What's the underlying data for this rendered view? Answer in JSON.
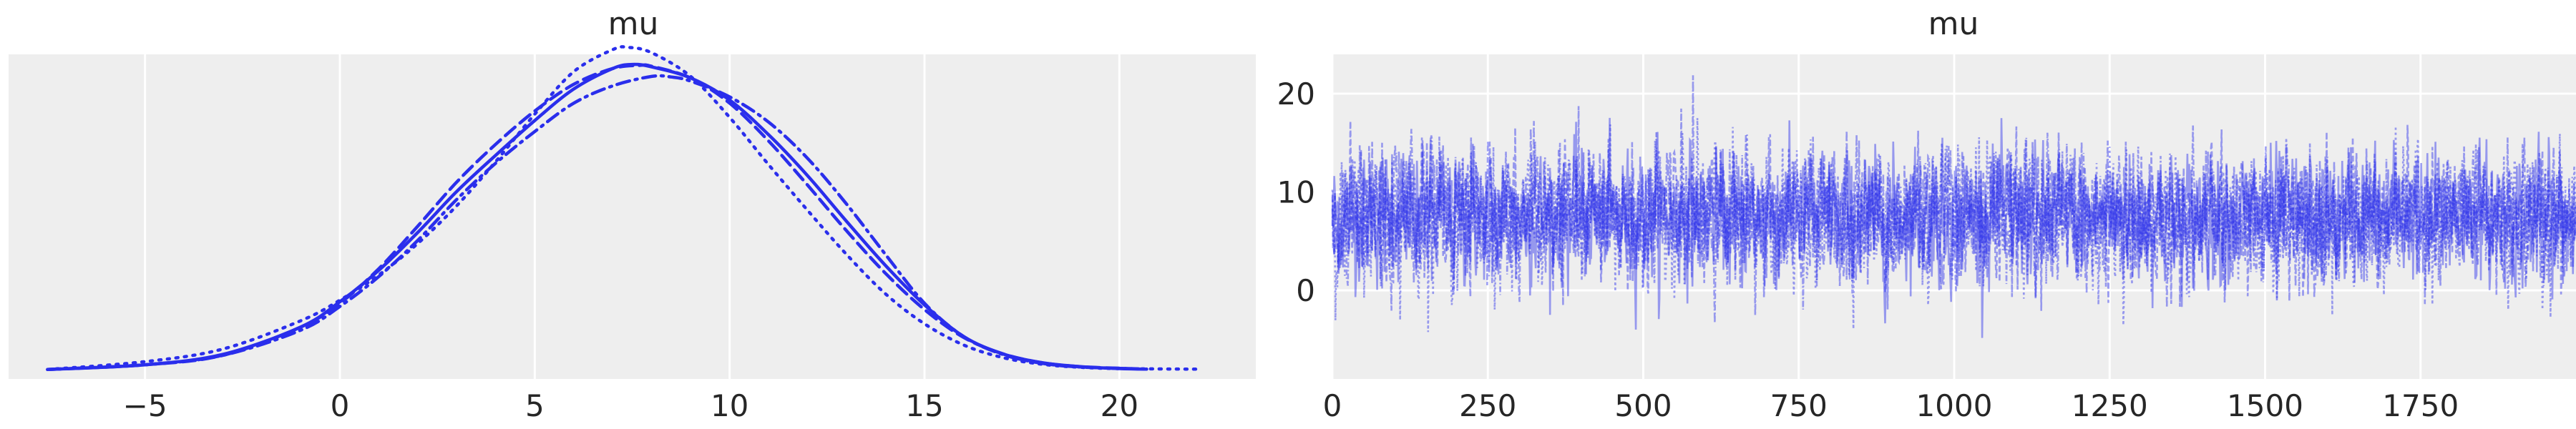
{
  "chart_data": [
    {
      "type": "line",
      "title": "mu",
      "xlabel": "",
      "ylabel": "",
      "xlim": [
        -8.5,
        23.5
      ],
      "ylim": [
        -0.003,
        0.1
      ],
      "xticks": [
        -5,
        0,
        5,
        10,
        15,
        20
      ],
      "xtick_labels": [
        "−5",
        "0",
        "5",
        "10",
        "15",
        "20"
      ],
      "grid": true,
      "y_axis_labels": false,
      "color": "#2a2eec",
      "series": [
        {
          "linestyle": "solid",
          "x": [
            -7.5,
            -5,
            -3,
            -1,
            0,
            1,
            2,
            3,
            4,
            5,
            6,
            7,
            7.5,
            8,
            9,
            10,
            11,
            12,
            13,
            14,
            15,
            16,
            17,
            18,
            19,
            20,
            20.7
          ],
          "y": [
            0.0,
            0.0015,
            0.0048,
            0.0135,
            0.0215,
            0.0315,
            0.0435,
            0.0565,
            0.068,
            0.079,
            0.089,
            0.0955,
            0.0968,
            0.096,
            0.0925,
            0.0855,
            0.0745,
            0.0615,
            0.047,
            0.033,
            0.0205,
            0.0105,
            0.005,
            0.0022,
            0.0009,
            0.0003,
            0.0001
          ]
        },
        {
          "linestyle": "dotted",
          "x": [
            -7.5,
            -5,
            -3,
            -1,
            0,
            1,
            2,
            3,
            4,
            5,
            6,
            7,
            7.4,
            8,
            9,
            10,
            11,
            12,
            13,
            14,
            15,
            16,
            17,
            18,
            19,
            20,
            22
          ],
          "y": [
            0.0,
            0.0025,
            0.0065,
            0.0155,
            0.022,
            0.03,
            0.04,
            0.052,
            0.066,
            0.081,
            0.0945,
            0.1015,
            0.1022,
            0.1005,
            0.093,
            0.08,
            0.065,
            0.0505,
            0.0365,
            0.024,
            0.0145,
            0.0078,
            0.0038,
            0.0017,
            0.0007,
            0.0003,
            0.0001
          ]
        },
        {
          "linestyle": "dashed",
          "x": [
            -7.5,
            -5,
            -3,
            -1,
            0,
            1,
            2,
            3,
            4,
            5,
            6,
            7,
            7.7,
            8,
            9,
            10,
            11,
            12,
            13,
            14,
            15,
            16,
            17,
            18,
            19,
            20.5
          ],
          "y": [
            0.0,
            0.0015,
            0.0045,
            0.0135,
            0.021,
            0.032,
            0.0455,
            0.0595,
            0.0715,
            0.082,
            0.0905,
            0.0955,
            0.0965,
            0.0962,
            0.0925,
            0.0845,
            0.0725,
            0.0585,
            0.044,
            0.0305,
            0.019,
            0.0102,
            0.005,
            0.0022,
            0.0009,
            0.0002
          ]
        },
        {
          "linestyle": "dashdot",
          "x": [
            -7.5,
            -5,
            -3,
            -1,
            0,
            1,
            2,
            3,
            4,
            5,
            6,
            7,
            8,
            8.5,
            9,
            10,
            11,
            12,
            13,
            14,
            15,
            16,
            17,
            18,
            19,
            20.5
          ],
          "y": [
            0.0,
            0.0015,
            0.0045,
            0.0125,
            0.02,
            0.0295,
            0.041,
            0.054,
            0.0655,
            0.0755,
            0.0845,
            0.09,
            0.093,
            0.0928,
            0.0915,
            0.0865,
            0.0785,
            0.067,
            0.0525,
            0.0365,
            0.021,
            0.0105,
            0.0048,
            0.002,
            0.0008,
            0.0002
          ]
        }
      ]
    },
    {
      "type": "line",
      "title": "mu",
      "xlabel": "",
      "ylabel": "",
      "xlim": [
        0,
        2000
      ],
      "ylim": [
        -9,
        24
      ],
      "xticks": [
        0,
        250,
        500,
        750,
        1000,
        1250,
        1500,
        1750
      ],
      "xtick_labels": [
        "0",
        "250",
        "500",
        "750",
        "1000",
        "1250",
        "1500",
        "1750"
      ],
      "yticks": [
        0,
        10,
        20
      ],
      "ytick_labels": [
        "0",
        "10",
        "20"
      ],
      "grid": true,
      "color": "#2a2eec",
      "draws": 2000,
      "chains": 4,
      "trace_center": 7.5,
      "trace_spread": 4.7,
      "series": [
        {
          "linestyle": "solid",
          "x": [
            0,
            1999
          ]
        },
        {
          "linestyle": "dotted",
          "x": [
            0,
            1999
          ]
        },
        {
          "linestyle": "dashed",
          "x": [
            0,
            1999
          ]
        },
        {
          "linestyle": "dashdot",
          "x": [
            0,
            1999
          ]
        }
      ]
    }
  ]
}
